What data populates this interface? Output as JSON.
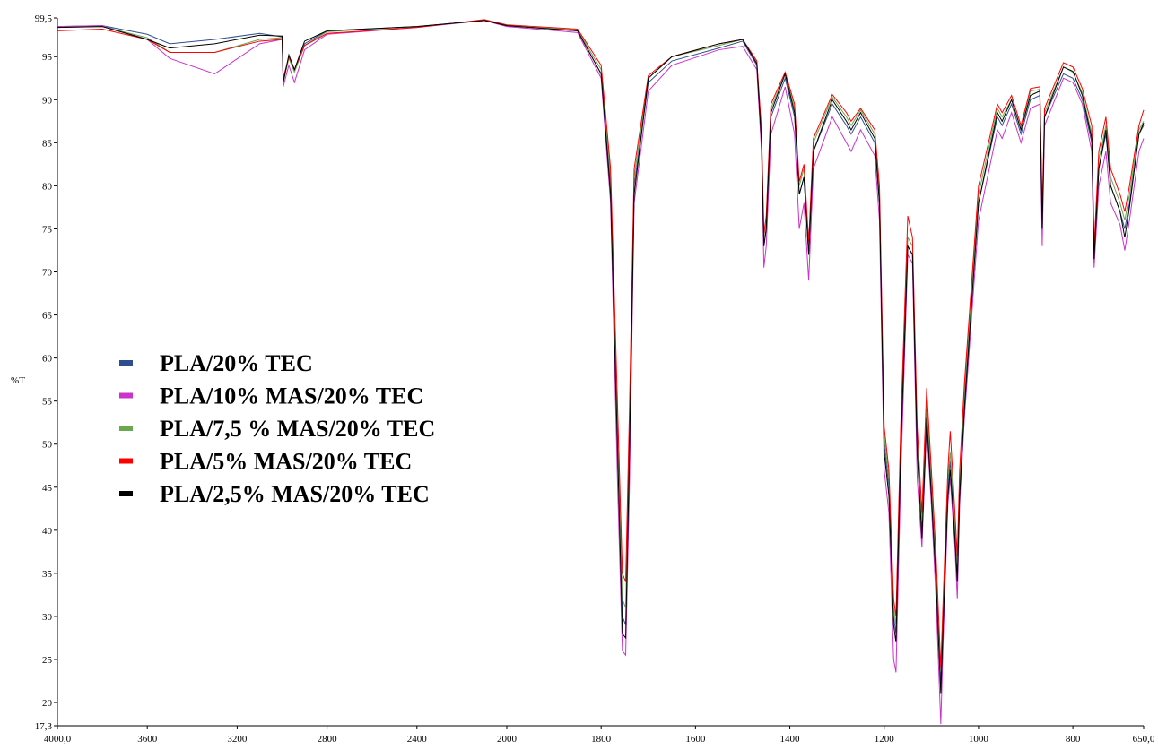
{
  "chart_data": {
    "type": "line",
    "ylabel": "%T",
    "xlim": [
      4000,
      650
    ],
    "x_scale_change": 2000,
    "xticks": [
      {
        "value": 4000,
        "label": "4000,0"
      },
      3600,
      3200,
      2800,
      2400,
      2000,
      1800,
      1600,
      1400,
      1200,
      1000,
      800,
      {
        "value": 650,
        "label": "650,0"
      }
    ],
    "ylim": [
      17.3,
      99.5
    ],
    "yticks": [
      {
        "value": 17.3,
        "label": "17,3"
      },
      20,
      25,
      30,
      35,
      40,
      45,
      50,
      55,
      60,
      65,
      70,
      75,
      80,
      85,
      90,
      95,
      {
        "value": 99.5,
        "label": "99,5"
      }
    ],
    "legend": "left",
    "x": [
      4000,
      3800,
      3600,
      3500,
      3300,
      3100,
      3000,
      2995,
      2970,
      2945,
      2900,
      2800,
      2400,
      2100,
      2000,
      1850,
      1800,
      1780,
      1765,
      1755,
      1748,
      1740,
      1730,
      1700,
      1650,
      1550,
      1500,
      1470,
      1460,
      1455,
      1450,
      1440,
      1410,
      1390,
      1380,
      1370,
      1360,
      1350,
      1310,
      1280,
      1270,
      1250,
      1220,
      1210,
      1200,
      1190,
      1180,
      1175,
      1165,
      1150,
      1140,
      1130,
      1120,
      1110,
      1100,
      1090,
      1080,
      1075,
      1065,
      1060,
      1050,
      1045,
      1040,
      1030,
      1000,
      960,
      950,
      930,
      910,
      890,
      870,
      865,
      860,
      820,
      800,
      780,
      760,
      755,
      745,
      730,
      720,
      700,
      690,
      680,
      660,
      650
    ],
    "series": [
      {
        "name": "PLA/20% TEC",
        "color": "#2e4f8f",
        "values": [
          98.5,
          98.6,
          97.6,
          96.5,
          97,
          97.7,
          97.3,
          92,
          95,
          93.5,
          96.5,
          98,
          98.5,
          99.2,
          98.6,
          98,
          93,
          80,
          50,
          30,
          29,
          50,
          80,
          92,
          94.5,
          96,
          96.8,
          94,
          85,
          73,
          75,
          88,
          92.5,
          88,
          79,
          81,
          72,
          84,
          89.5,
          87,
          86,
          88,
          85,
          78,
          50,
          45,
          30,
          28,
          50,
          73,
          72,
          50,
          40,
          54,
          45,
          35,
          22.5,
          30,
          45,
          48,
          40,
          35,
          45,
          55,
          78,
          88,
          87,
          89.5,
          86,
          90,
          90.5,
          75,
          88,
          93,
          92.5,
          90,
          85,
          71,
          82,
          86,
          80,
          77,
          75,
          78,
          86,
          87
        ]
      },
      {
        "name": "PLA/10% MAS/20% TEC",
        "color": "#cc33cc",
        "values": [
          98.5,
          98.6,
          97,
          94.8,
          93,
          96.5,
          97,
          91.5,
          94,
          92,
          95.8,
          97.6,
          98.4,
          99.2,
          98.5,
          97.8,
          92.5,
          78,
          45,
          26,
          25.5,
          45,
          78,
          91,
          94,
          95.8,
          96.2,
          93.5,
          84,
          70.5,
          73,
          86,
          91.5,
          86,
          75,
          78,
          69,
          82,
          88,
          85,
          84,
          86.5,
          83.5,
          76,
          47,
          42,
          25,
          23.5,
          46,
          72,
          71,
          46,
          38,
          52,
          43,
          32,
          17.5,
          27,
          43,
          46,
          38,
          32,
          43,
          53,
          76,
          86.5,
          85.5,
          88.5,
          85,
          89,
          89.5,
          73,
          87,
          92.5,
          92,
          89.5,
          84,
          70.5,
          80,
          84,
          78,
          75.5,
          72.5,
          76,
          84,
          85.5
        ]
      },
      {
        "name": "PLA/7,5 % MAS/20% TEC",
        "color": "#6aa84f",
        "values": [
          98.4,
          98.5,
          97.2,
          95.5,
          95.5,
          97,
          97.2,
          92,
          94.8,
          93.2,
          96.3,
          97.9,
          98.5,
          99.2,
          98.6,
          98.1,
          93.5,
          81,
          52,
          32,
          31,
          52,
          81,
          92.5,
          95,
          96.3,
          97,
          94.5,
          86,
          74,
          76,
          89,
          93,
          89,
          80,
          82,
          73,
          85,
          90.3,
          88,
          87,
          88.8,
          86,
          79,
          51,
          46,
          31,
          29,
          51,
          74,
          73,
          51,
          41,
          55,
          46,
          36,
          23.5,
          31,
          46,
          49,
          41,
          36,
          46,
          56,
          79,
          89,
          88,
          90,
          86.5,
          91,
          91.2,
          76,
          88.5,
          93.8,
          93.2,
          90.8,
          86,
          72,
          83,
          87,
          81,
          78,
          76,
          79,
          86.5,
          87.5
        ]
      },
      {
        "name": "PLA/5% MAS/20% TEC",
        "color": "#ff0000",
        "values": [
          98,
          98.2,
          97,
          95.5,
          95.5,
          96.8,
          97,
          92.5,
          95,
          93.5,
          96.3,
          97.7,
          98.4,
          99.3,
          98.7,
          98.2,
          94,
          82,
          54,
          35,
          34,
          54,
          82,
          92.8,
          95,
          96.5,
          97,
          94.5,
          86.5,
          74.5,
          76.5,
          89.5,
          93.2,
          89.5,
          80.5,
          82.5,
          73.5,
          85.5,
          90.6,
          88.5,
          87.5,
          89,
          86.5,
          80,
          52,
          47,
          32,
          30,
          52,
          76.5,
          74,
          52,
          42,
          56.5,
          47,
          37,
          24,
          32,
          47,
          51.5,
          42,
          37,
          47,
          57,
          80,
          89.5,
          88.5,
          90.5,
          87,
          91.3,
          91.5,
          77,
          89,
          94.3,
          93.8,
          91.3,
          87,
          73,
          84,
          88,
          82,
          79,
          77,
          80,
          87,
          88.8
        ]
      },
      {
        "name": "PLA/2,5% MAS/20% TEC",
        "color": "#000000",
        "values": [
          98.4,
          98.5,
          97,
          96,
          96.5,
          97.5,
          97.4,
          92,
          95.2,
          93.5,
          96.8,
          98,
          98.5,
          99.2,
          98.6,
          98,
          93,
          79,
          49,
          28,
          27.5,
          49,
          79,
          92.5,
          95,
          96.5,
          97,
          94.2,
          85,
          73,
          75,
          88.5,
          93,
          88.5,
          79,
          81,
          72,
          84,
          90,
          87.5,
          86.5,
          88.5,
          85.5,
          78,
          49,
          44,
          29,
          27,
          49,
          73,
          72,
          49,
          39,
          53,
          44,
          34,
          21,
          29,
          44,
          47,
          39,
          34,
          44,
          54,
          78,
          88.5,
          87.5,
          90,
          86.5,
          90.5,
          91,
          75,
          88,
          93.8,
          93.3,
          90.5,
          85.5,
          71.5,
          82,
          86.5,
          80,
          77,
          74,
          77.5,
          86,
          87.3
        ]
      }
    ]
  }
}
